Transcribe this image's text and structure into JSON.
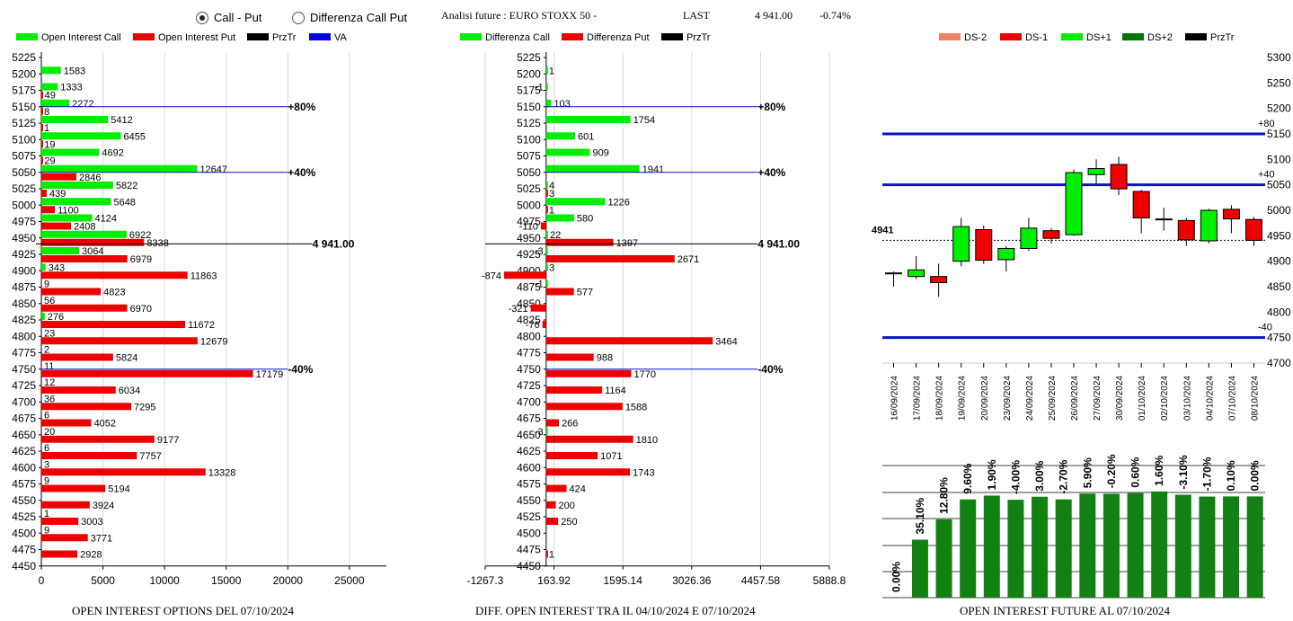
{
  "header": {
    "radio_call_put": "Call - Put",
    "radio_diff": "Differenza Call Put",
    "title": "Analisi future : EURO STOXX 50 -",
    "last_label": "LAST",
    "last_value": "4 941.00",
    "change": "-0.74%"
  },
  "colors": {
    "call": "#00ee00",
    "put": "#ee0000",
    "prztr": "#000000",
    "va": "#0000ee",
    "bar": "#138013",
    "level": "#0a14c8"
  },
  "chart_data": [
    {
      "type": "bar",
      "title": "OPEN INTEREST OPTIONS DEL 07/10/2024",
      "legend": [
        "Open Interest Call",
        "Open Interest Put",
        "PrzTr",
        "VA"
      ],
      "xlim": [
        0,
        28000
      ],
      "xticks": [
        "0",
        "5000",
        "10000",
        "15000",
        "20000",
        "25000"
      ],
      "xtick_values": [
        0,
        5000,
        10000,
        15000,
        20000,
        25000
      ],
      "categories": [
        "5225",
        "5200",
        "5175",
        "5150",
        "5125",
        "5100",
        "5075",
        "5050",
        "5025",
        "5000",
        "4975",
        "4950",
        "4925",
        "4900",
        "4875",
        "4850",
        "4825",
        "4800",
        "4775",
        "4750",
        "4725",
        "4700",
        "4675",
        "4650",
        "4625",
        "4600",
        "4575",
        "4550",
        "4525",
        "4500",
        "4475",
        "4450"
      ],
      "series": [
        {
          "name": "Open Interest Call",
          "values": [
            null,
            1583,
            1333,
            2272,
            5412,
            6455,
            4692,
            12647,
            5822,
            5648,
            4124,
            6922,
            3064,
            343,
            null,
            null,
            276,
            null,
            null,
            null,
            null,
            null,
            null,
            null,
            null,
            null,
            null,
            null,
            null,
            null,
            null,
            null
          ]
        },
        {
          "name": "Open Interest Put",
          "values": [
            null,
            null,
            49,
            8,
            1,
            19,
            29,
            2846,
            439,
            1100,
            2408,
            8338,
            6979,
            11863,
            4823,
            6970,
            11672,
            12679,
            5824,
            17179,
            6034,
            7295,
            4052,
            9177,
            7757,
            13328,
            5194,
            3924,
            3003,
            3771,
            2928,
            null
          ]
        }
      ],
      "call_labels": [
        "",
        "1583",
        "1333",
        "2272",
        "5412",
        "6455",
        "4692",
        "12647",
        "5822",
        "5648",
        "4124",
        "6922",
        "3064",
        "343",
        "9",
        "56",
        "276",
        "23",
        "2",
        "11",
        "12",
        "36",
        "6",
        "20",
        "6",
        "3",
        "9",
        "",
        "1",
        "9",
        "",
        ""
      ],
      "put_labels": [
        "",
        "",
        "49",
        "8",
        "1",
        "19",
        "29",
        "2846",
        "439",
        "1100",
        "2408",
        "8338",
        "6979",
        "11863",
        "4823",
        "6970",
        "11672",
        "12679",
        "5824",
        "17179",
        "6034",
        "7295",
        "4052",
        "9177",
        "7757",
        "13328",
        "5194",
        "3924",
        "3003",
        "3771",
        "2928",
        ""
      ],
      "reference_lines": [
        {
          "strike": "5150",
          "label": "+80%",
          "value": 20000,
          "color": "#0a14c8"
        },
        {
          "strike": "5050",
          "label": "+40%",
          "value": 20000,
          "color": "#0a14c8"
        },
        {
          "strike": "4941",
          "label": "4 941.00",
          "value": 22000,
          "color": "#000000"
        },
        {
          "strike": "4750",
          "label": "-40%",
          "value": 20000,
          "color": "#0a14c8"
        }
      ]
    },
    {
      "type": "bar",
      "title": "DIFF. OPEN INTEREST TRA IL 04/10/2024 E 07/10/2024",
      "legend": [
        "Differenza Call",
        "Differenza Put",
        "PrzTr"
      ],
      "xlim": [
        -1267.3,
        5888.8
      ],
      "xticks": [
        "-1267.3",
        "163.92",
        "1595.14",
        "3026.36",
        "4457.58",
        "5888.8"
      ],
      "xtick_values": [
        -1267.3,
        163.92,
        1595.14,
        3026.36,
        4457.58,
        5888.8
      ],
      "categories": [
        "5225",
        "5200",
        "5175",
        "5150",
        "5125",
        "5100",
        "5075",
        "5050",
        "5025",
        "5000",
        "4975",
        "4950",
        "4925",
        "4900",
        "4875",
        "4850",
        "4825",
        "4800",
        "4775",
        "4750",
        "4725",
        "4700",
        "4675",
        "4650",
        "4625",
        "4600",
        "4575",
        "4550",
        "4525",
        "4500",
        "4475",
        "4450"
      ],
      "series": [
        {
          "name": "Differenza Call",
          "values": [
            null,
            1,
            -1,
            103,
            1754,
            601,
            909,
            1941,
            4,
            1226,
            580,
            22,
            -3,
            3,
            -1,
            null,
            null,
            null,
            null,
            null,
            null,
            null,
            null,
            -3,
            null,
            null,
            null,
            null,
            null,
            null,
            null,
            null
          ]
        },
        {
          "name": "Differenza Put",
          "values": [
            null,
            null,
            null,
            null,
            null,
            null,
            null,
            null,
            3,
            1,
            -110,
            1397,
            2671,
            -874,
            577,
            -321,
            -76,
            3464,
            988,
            1770,
            1164,
            1588,
            266,
            1810,
            1071,
            1743,
            424,
            200,
            250,
            null,
            1,
            null
          ]
        }
      ],
      "call_labels": [
        "",
        "1",
        "-1",
        "103",
        "1754",
        "601",
        "909",
        "1941",
        "4",
        "1226",
        "580",
        "22",
        "-3",
        "3",
        "-1",
        "",
        "",
        "",
        "",
        "",
        "",
        "",
        "",
        "-3",
        "",
        "",
        "",
        "",
        "",
        "",
        "",
        ""
      ],
      "put_labels": [
        "",
        "",
        "",
        "",
        "",
        "",
        "",
        "",
        "3",
        "1",
        "-110",
        "1397",
        "2671",
        "-874",
        "577",
        "-321",
        "-76",
        "3464",
        "988",
        "1770",
        "1164",
        "1588",
        "266",
        "1810",
        "1071",
        "1743",
        "424",
        "200",
        "250",
        "",
        "1",
        ""
      ],
      "reference_lines": [
        {
          "strike": "5150",
          "label": "+80%",
          "value": 4400,
          "color": "#0a14c8"
        },
        {
          "strike": "5050",
          "label": "+40%",
          "value": 4400,
          "color": "#0a14c8"
        },
        {
          "strike": "4941",
          "label": "4 941.00",
          "value": 4400,
          "color": "#000000"
        },
        {
          "strike": "4750",
          "label": "-40%",
          "value": 4400,
          "color": "#0a14c8"
        }
      ]
    },
    {
      "type": "candlestick",
      "legend": [
        "DS-2",
        "DS-1",
        "DS+1",
        "DS+2",
        "PrzTr"
      ],
      "ylim": [
        4700,
        5300
      ],
      "yticks": [
        "5300",
        "5250",
        "5200",
        "5150",
        "5100",
        "5050",
        "5000",
        "4950",
        "4900",
        "4850",
        "4800",
        "4750",
        "4700"
      ],
      "ytick_values": [
        5300,
        5250,
        5200,
        5150,
        5100,
        5050,
        5000,
        4950,
        4900,
        4850,
        4800,
        4750,
        4700
      ],
      "levels": [
        {
          "value": 5150,
          "label": "+80"
        },
        {
          "value": 5050,
          "label": "+40"
        },
        {
          "value": 4750,
          "label": "-40"
        }
      ],
      "price_line": {
        "value": 4941,
        "label": "4941"
      },
      "dates": [
        "16/09/2024",
        "17/09/2024",
        "18/09/2024",
        "19/09/2024",
        "20/09/2024",
        "23/09/2024",
        "24/09/2024",
        "25/09/2024",
        "26/09/2024",
        "27/09/2024",
        "30/09/2024",
        "01/10/2024",
        "02/10/2024",
        "03/10/2024",
        "04/10/2024",
        "07/10/2024",
        "08/10/2024"
      ],
      "candles": [
        {
          "o": 4877,
          "h": 4880,
          "l": 4850,
          "c": 4877
        },
        {
          "o": 4870,
          "h": 4910,
          "l": 4865,
          "c": 4883
        },
        {
          "o": 4870,
          "h": 4895,
          "l": 4830,
          "c": 4858
        },
        {
          "o": 4900,
          "h": 4985,
          "l": 4890,
          "c": 4968
        },
        {
          "o": 4962,
          "h": 4970,
          "l": 4895,
          "c": 4902
        },
        {
          "o": 4903,
          "h": 4930,
          "l": 4880,
          "c": 4925
        },
        {
          "o": 4925,
          "h": 4985,
          "l": 4920,
          "c": 4965
        },
        {
          "o": 4960,
          "h": 4965,
          "l": 4935,
          "c": 4945
        },
        {
          "o": 4952,
          "h": 5080,
          "l": 4950,
          "c": 5074
        },
        {
          "o": 5070,
          "h": 5100,
          "l": 5050,
          "c": 5082
        },
        {
          "o": 5090,
          "h": 5105,
          "l": 5030,
          "c": 5042
        },
        {
          "o": 5037,
          "h": 5040,
          "l": 4955,
          "c": 4985
        },
        {
          "o": 4983,
          "h": 5005,
          "l": 4960,
          "c": 4983
        },
        {
          "o": 4980,
          "h": 4985,
          "l": 4930,
          "c": 4942
        },
        {
          "o": 4940,
          "h": 5003,
          "l": 4935,
          "c": 5000
        },
        {
          "o": 5002,
          "h": 5010,
          "l": 4955,
          "c": 4983
        },
        {
          "o": 4982,
          "h": 4987,
          "l": 4930,
          "c": 4941
        }
      ]
    },
    {
      "type": "bar",
      "title": "OPEN INTEREST FUTURE AL 07/10/2024",
      "categories": [
        "16/09/2024",
        "17/09/2024",
        "18/09/2024",
        "19/09/2024",
        "20/09/2024",
        "23/09/2024",
        "24/09/2024",
        "25/09/2024",
        "26/09/2024",
        "27/09/2024",
        "30/09/2024",
        "01/10/2024",
        "02/10/2024",
        "03/10/2024",
        "04/10/2024",
        "07/10/2024"
      ],
      "values": [
        0,
        35.1,
        47.4,
        59.5,
        61.8,
        59.3,
        61.1,
        59.5,
        63.0,
        62.9,
        63.3,
        64.3,
        62.3,
        61.2,
        61.3,
        61.3
      ],
      "labels": [
        "0.00%",
        "35.10%",
        "12.80%",
        "9.60%",
        "1.90%",
        "-4.00%",
        "3.00%",
        "-2.70%",
        "5.90%",
        "-0.20%",
        "0.60%",
        "1.60%",
        "-3.10%",
        "-1.70%",
        "0.10%",
        "0.00%"
      ],
      "ylim": [
        0,
        80
      ],
      "grid": true
    }
  ]
}
